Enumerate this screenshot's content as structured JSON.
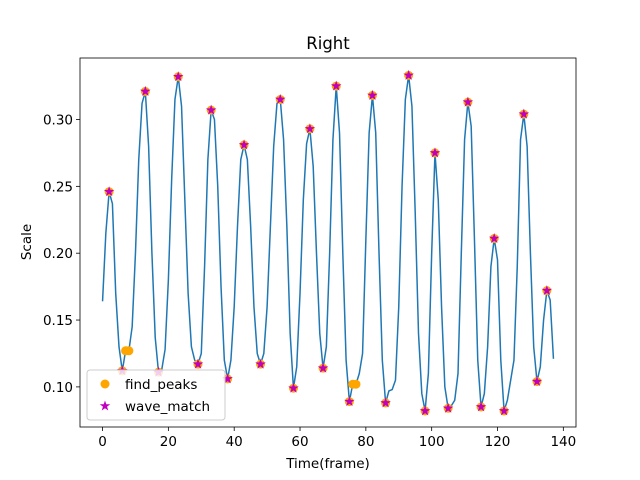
{
  "chart_data": {
    "type": "line",
    "title": "Right",
    "x_label": "Time(frame)",
    "y_label": "Scale",
    "xlim": [
      -6.85,
      143.85
    ],
    "ylim": [
      0.07,
      0.346
    ],
    "xticks": [
      0,
      20,
      40,
      60,
      80,
      100,
      120,
      140
    ],
    "yticks": [
      {
        "value": 0.1,
        "label": "0.10"
      },
      0.15,
      {
        "value": 0.2,
        "label": "0.20"
      },
      0.25,
      {
        "value": 0.3,
        "label": "0.30"
      }
    ],
    "legend": "lower left",
    "series": [
      {
        "type": "line",
        "color": "#1f77b4",
        "x": [
          0,
          1,
          2,
          3,
          4,
          5,
          6,
          7,
          8,
          9,
          10,
          11,
          12,
          13,
          14,
          15,
          16,
          17,
          18,
          19,
          20,
          21,
          22,
          23,
          24,
          25,
          26,
          27,
          28,
          29,
          30,
          31,
          32,
          33,
          34,
          35,
          36,
          37,
          38,
          39,
          40,
          41,
          42,
          43,
          44,
          45,
          46,
          47,
          48,
          49,
          50,
          51,
          52,
          53,
          54,
          55,
          56,
          57,
          58,
          59,
          60,
          61,
          62,
          63,
          64,
          65,
          66,
          67,
          68,
          69,
          70,
          71,
          72,
          73,
          74,
          75,
          76,
          77,
          78,
          79,
          80,
          81,
          82,
          83,
          84,
          85,
          86,
          87,
          88,
          89,
          90,
          91,
          92,
          93,
          94,
          95,
          96,
          97,
          98,
          99,
          100,
          101,
          102,
          103,
          104,
          105,
          106,
          107,
          108,
          109,
          110,
          111,
          112,
          113,
          114,
          115,
          116,
          117,
          118,
          119,
          120,
          121,
          122,
          123,
          124,
          125,
          126,
          127,
          128,
          129,
          130,
          131,
          132,
          133,
          134,
          135,
          136,
          137
        ],
        "values": [
          0.164,
          0.215,
          0.246,
          0.237,
          0.17,
          0.13,
          0.112,
          0.127,
          0.127,
          0.145,
          0.2,
          0.27,
          0.312,
          0.321,
          0.28,
          0.2,
          0.137,
          0.111,
          0.113,
          0.128,
          0.18,
          0.255,
          0.315,
          0.332,
          0.31,
          0.24,
          0.17,
          0.13,
          0.12,
          0.117,
          0.125,
          0.19,
          0.27,
          0.307,
          0.3,
          0.25,
          0.175,
          0.12,
          0.106,
          0.12,
          0.16,
          0.22,
          0.27,
          0.281,
          0.27,
          0.22,
          0.16,
          0.125,
          0.117,
          0.125,
          0.16,
          0.22,
          0.28,
          0.312,
          0.315,
          0.285,
          0.22,
          0.14,
          0.099,
          0.115,
          0.17,
          0.24,
          0.282,
          0.293,
          0.265,
          0.2,
          0.14,
          0.114,
          0.13,
          0.2,
          0.285,
          0.325,
          0.29,
          0.2,
          0.12,
          0.089,
          0.102,
          0.102,
          0.11,
          0.125,
          0.21,
          0.29,
          0.318,
          0.29,
          0.2,
          0.12,
          0.088,
          0.097,
          0.098,
          0.105,
          0.16,
          0.25,
          0.315,
          0.333,
          0.31,
          0.23,
          0.14,
          0.095,
          0.082,
          0.11,
          0.2,
          0.275,
          0.24,
          0.16,
          0.1,
          0.084,
          0.086,
          0.09,
          0.11,
          0.2,
          0.285,
          0.313,
          0.295,
          0.21,
          0.12,
          0.085,
          0.095,
          0.13,
          0.19,
          0.211,
          0.195,
          0.12,
          0.082,
          0.09,
          0.105,
          0.12,
          0.19,
          0.285,
          0.304,
          0.28,
          0.2,
          0.13,
          0.104,
          0.115,
          0.15,
          0.172,
          0.165,
          0.121
        ]
      },
      {
        "type": "scatter",
        "name": "find_peaks",
        "color": "#ffa500",
        "marker": "circle",
        "x": [
          2,
          6,
          7,
          8,
          13,
          17,
          23,
          29,
          33,
          38,
          43,
          48,
          54,
          58,
          63,
          67,
          71,
          75,
          76,
          77,
          82,
          86,
          93,
          98,
          101,
          105,
          111,
          115,
          119,
          122,
          128,
          132,
          135
        ],
        "values": [
          0.246,
          0.112,
          0.127,
          0.127,
          0.321,
          0.111,
          0.332,
          0.117,
          0.307,
          0.106,
          0.281,
          0.117,
          0.315,
          0.099,
          0.293,
          0.114,
          0.325,
          0.089,
          0.102,
          0.102,
          0.318,
          0.088,
          0.333,
          0.082,
          0.275,
          0.084,
          0.313,
          0.085,
          0.211,
          0.082,
          0.304,
          0.104,
          0.172
        ]
      },
      {
        "type": "scatter",
        "name": "wave_match",
        "color": "#bf00bf",
        "marker": "star",
        "x": [
          2,
          6,
          13,
          17,
          23,
          29,
          33,
          38,
          43,
          48,
          54,
          58,
          63,
          67,
          71,
          75,
          82,
          86,
          93,
          98,
          101,
          105,
          111,
          115,
          119,
          122,
          128,
          132,
          135
        ],
        "values": [
          0.246,
          0.112,
          0.321,
          0.111,
          0.332,
          0.117,
          0.307,
          0.106,
          0.281,
          0.117,
          0.315,
          0.099,
          0.293,
          0.114,
          0.325,
          0.089,
          0.318,
          0.088,
          0.333,
          0.082,
          0.275,
          0.084,
          0.313,
          0.085,
          0.211,
          0.082,
          0.304,
          0.104,
          0.172
        ]
      }
    ]
  }
}
